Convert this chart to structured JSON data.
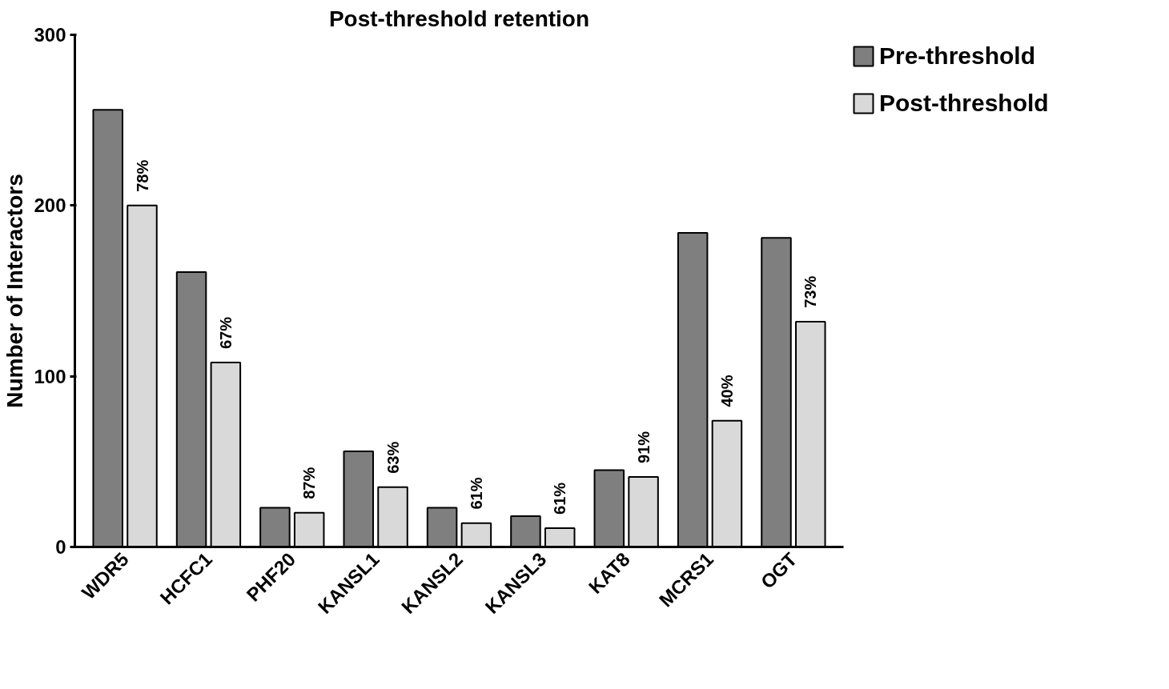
{
  "chart_data": {
    "type": "bar",
    "title": "Post-threshold retention",
    "ylabel": "Number of Interactors",
    "categories": [
      "WDR5",
      "HCFC1",
      "PHF20",
      "KANSL1",
      "KANSL2",
      "KANSL3",
      "KAT8",
      "MCRS1",
      "OGT"
    ],
    "series": [
      {
        "name": "Pre-threshold",
        "color": "#7f7f7f",
        "values": [
          256,
          161,
          23,
          56,
          23,
          18,
          45,
          184,
          181
        ]
      },
      {
        "name": "Post-threshold",
        "color": "#d9d9d9",
        "values": [
          200,
          108,
          20,
          35,
          14,
          11,
          41,
          74,
          132
        ]
      }
    ],
    "annotations": [
      {
        "text": "78%",
        "x": "WDR5",
        "y": 200
      },
      {
        "text": "67%",
        "x": "HCFC1",
        "y": 108
      },
      {
        "text": "87%",
        "x": "PHF20",
        "y": 20
      },
      {
        "text": "63%",
        "x": "KANSL1",
        "y": 35
      },
      {
        "text": "61%",
        "x": "KANSL2",
        "y": 14
      },
      {
        "text": "61%",
        "x": "KANSL3",
        "y": 11
      },
      {
        "text": "91%",
        "x": "KAT8",
        "y": 41
      },
      {
        "text": "40%",
        "x": "MCRS1",
        "y": 74
      },
      {
        "text": "73%",
        "x": "OGT",
        "y": 132
      }
    ],
    "ylim": [
      0,
      300
    ],
    "yticks": [
      0,
      100,
      200,
      300
    ],
    "grid": false,
    "legend": "right"
  }
}
